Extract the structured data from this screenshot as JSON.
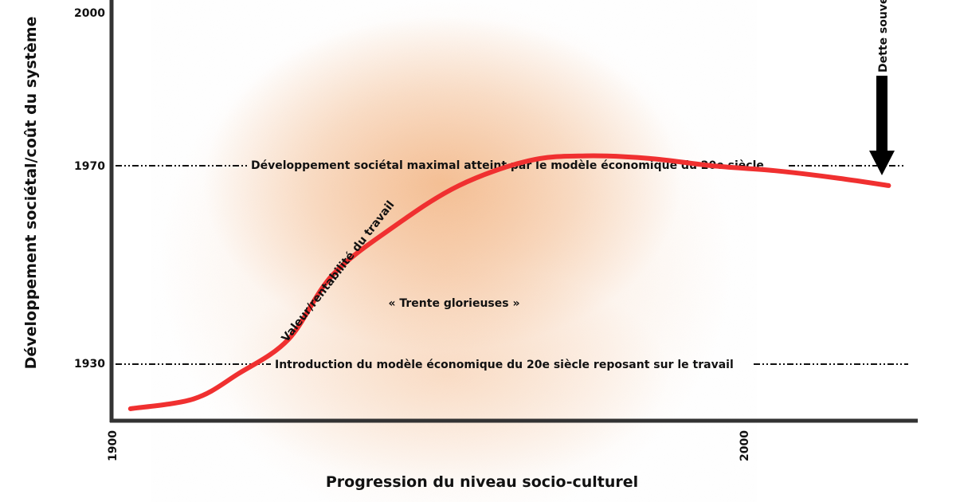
{
  "chart_data": {
    "type": "line",
    "title": "",
    "xlabel": "Progression du niveau socio-culturel",
    "ylabel": "Développement sociétal/coût du système",
    "x_ticks": [
      "1900",
      "2000"
    ],
    "y_ticks": [
      "1930",
      "1970",
      "2000"
    ],
    "reference_lines": [
      {
        "y": 1970,
        "label": "Développement sociétal maximal atteint par le modèle économique du 20e siècle"
      },
      {
        "y": 1930,
        "label": "Introduction du modèle économique du 20e siècle reposant sur le travail"
      }
    ],
    "annotations": {
      "era": "« Trente glorieuses »",
      "curve": "Valeur/rentabilité du travail",
      "arrow": "Dette souveraine"
    },
    "series": [
      {
        "name": "",
        "x": [
          1903,
          1913,
          1920,
          1928,
          1935,
          1945,
          1955,
          1966,
          1975,
          1985,
          1995,
          2005,
          2015,
          2023
        ],
        "y": [
          1921,
          1923,
          1928,
          1935,
          1948,
          1958,
          1966,
          1971,
          1972,
          1971.5,
          1970,
          1969,
          1967.5,
          1966
        ]
      }
    ],
    "curve_color": "#f03030",
    "glow_color": "#f0a060",
    "grid": false,
    "legend": "none"
  }
}
